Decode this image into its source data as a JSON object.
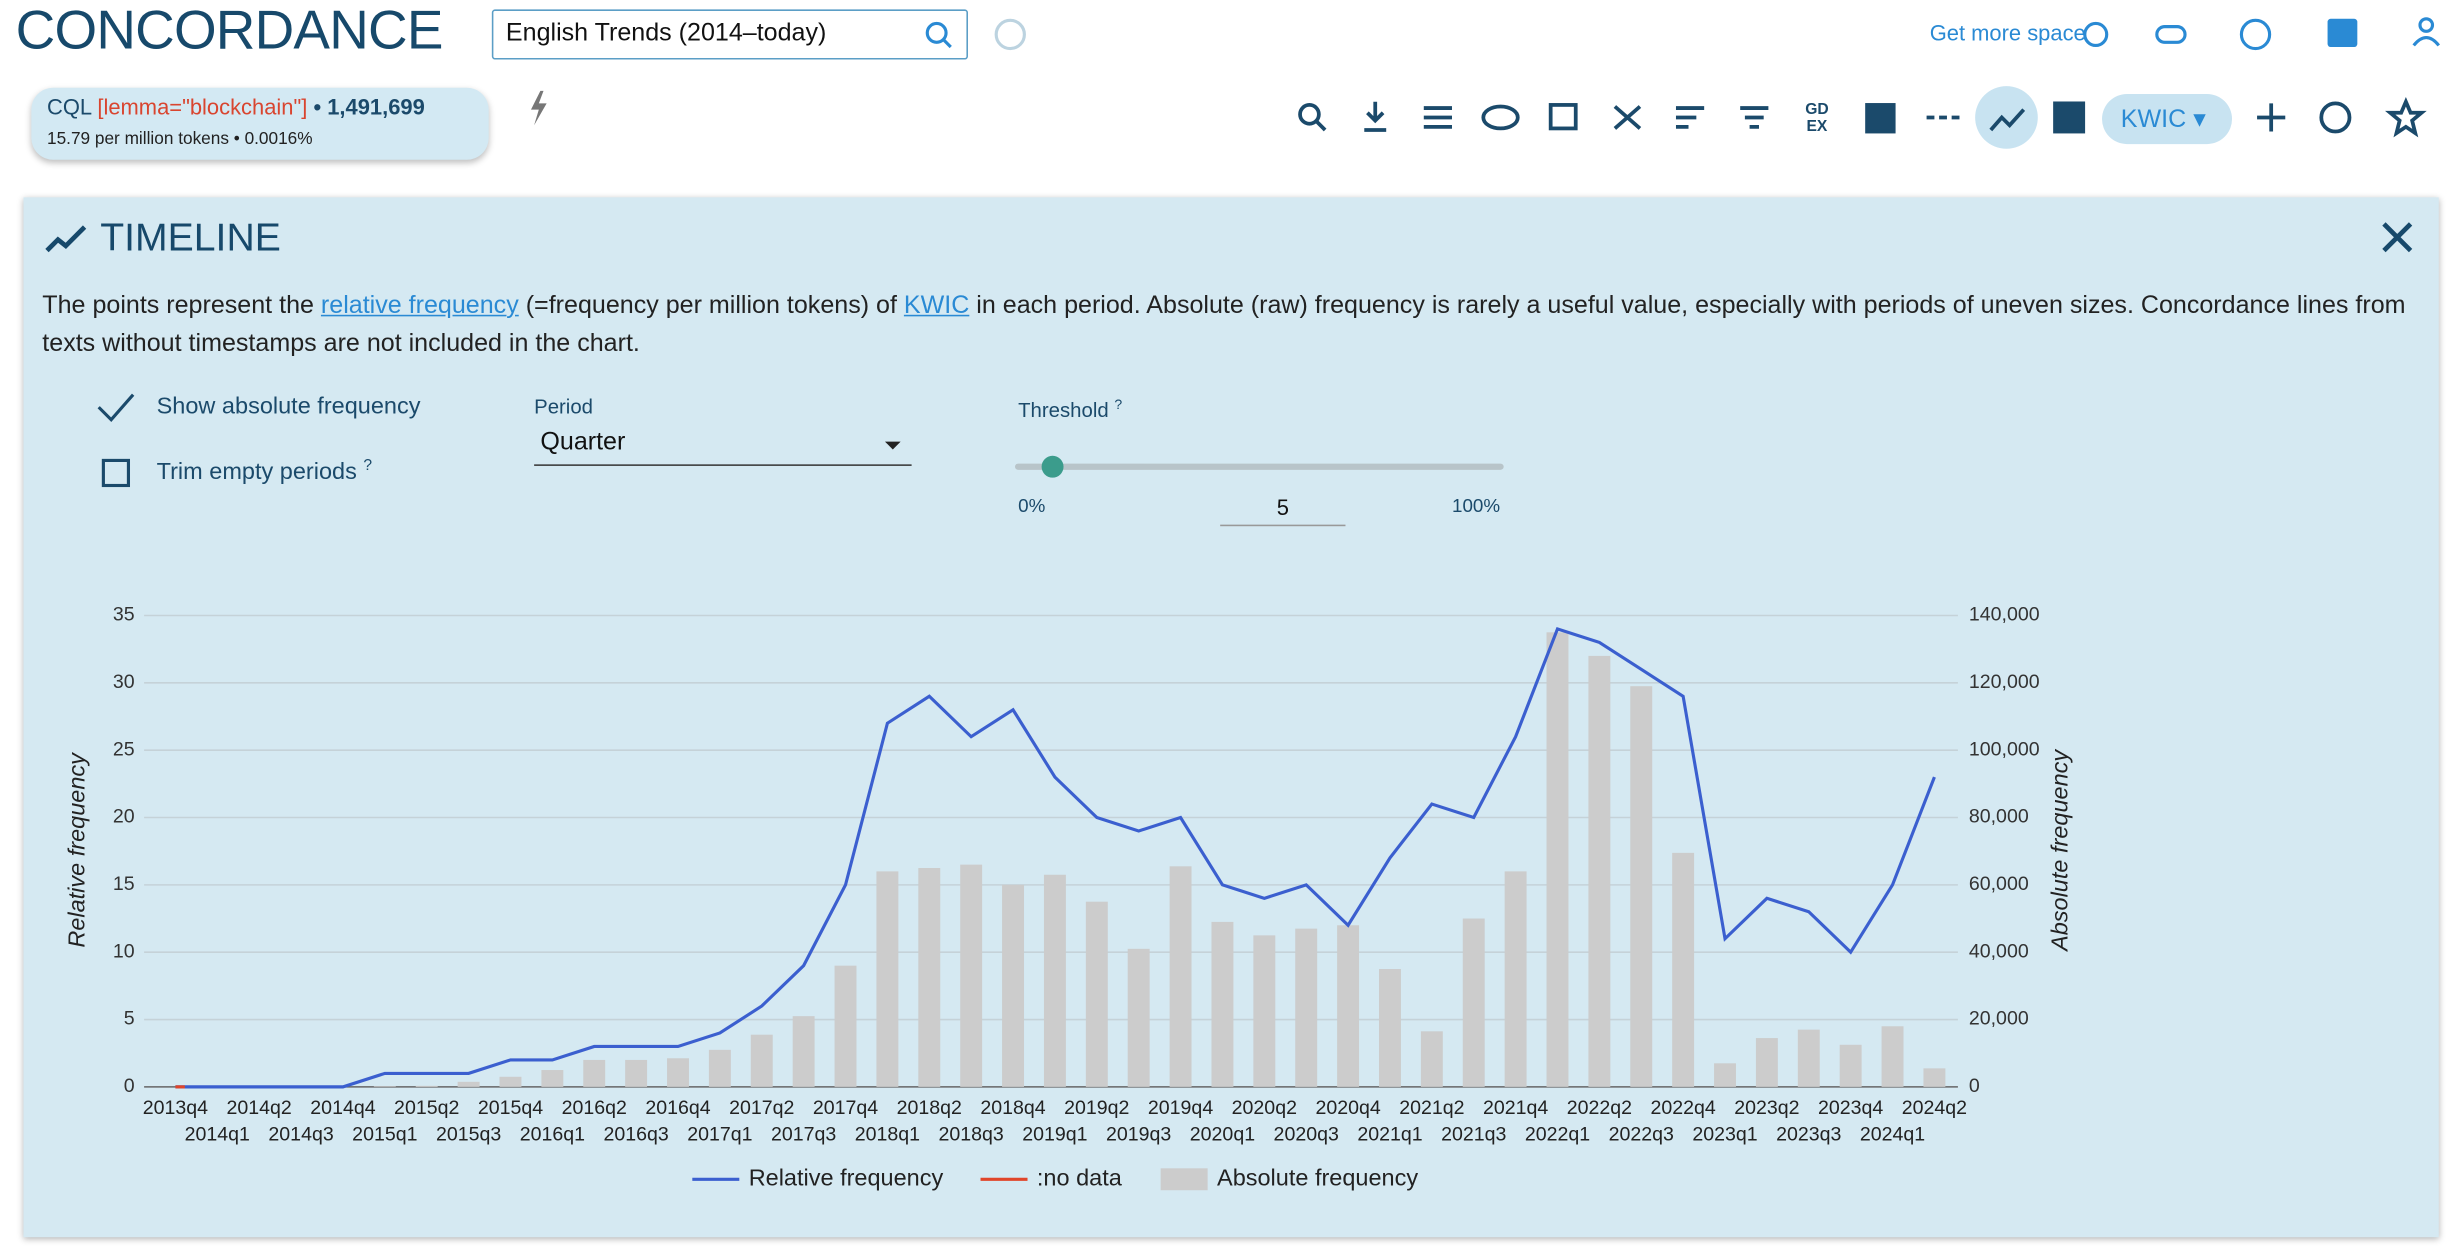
{
  "header": {
    "app_title": "CONCORDANCE",
    "corpus": "English Trends (2014–today)",
    "get_more_space": "Get more space"
  },
  "query": {
    "lang": "CQL",
    "expression": "[lemma=\"blockchain\"]",
    "hits": "• 1,491,699",
    "stats": "15.79 per million tokens • 0.0016%"
  },
  "toolbar": {
    "gdex_top": "GD",
    "gdex_bottom": "EX",
    "view": "KWIC"
  },
  "panel": {
    "title": "TIMELINE",
    "description": [
      "The points represent the ",
      "relative frequency",
      " (=frequency per million tokens) of ",
      "KWIC",
      " in each period. Absolute (raw) frequency is rarely a useful value, especially with periods of uneven sizes. Concordance lines from texts without timestamps are not included in the chart."
    ],
    "show_absolute": "Show absolute frequency",
    "trim_empty": "Trim empty periods",
    "help_mark": "?",
    "period_label": "Period",
    "period_value": "Quarter",
    "threshold_label": "Threshold",
    "threshold_min": "0%",
    "threshold_value": "5",
    "threshold_max": "100%"
  },
  "chart_data": {
    "type": "combo",
    "categories": [
      "2013q4",
      "2014q1",
      "2014q2",
      "2014q3",
      "2014q4",
      "2015q1",
      "2015q2",
      "2015q3",
      "2015q4",
      "2016q1",
      "2016q2",
      "2016q3",
      "2016q4",
      "2017q1",
      "2017q2",
      "2017q3",
      "2017q4",
      "2018q1",
      "2018q2",
      "2018q3",
      "2018q4",
      "2019q1",
      "2019q2",
      "2019q3",
      "2019q4",
      "2020q1",
      "2020q2",
      "2020q3",
      "2020q4",
      "2021q1",
      "2021q2",
      "2021q3",
      "2021q4",
      "2022q1",
      "2022q2",
      "2022q3",
      "2022q4",
      "2023q1",
      "2023q2",
      "2023q3",
      "2023q4",
      "2024q1",
      "2024q2"
    ],
    "series": [
      {
        "name": "Relative frequency",
        "color": "#3b5fcf",
        "values": [
          0,
          0,
          0,
          0,
          0,
          1,
          1,
          1,
          2,
          2,
          3,
          3,
          3,
          4,
          6,
          9,
          15,
          27,
          29,
          26,
          28,
          23,
          20,
          19,
          20,
          15,
          14,
          15,
          12,
          17,
          21,
          20,
          26,
          34,
          33,
          31,
          29,
          11,
          14,
          13,
          10,
          15,
          23
        ]
      },
      {
        "name": ":no data",
        "color": "#e0452a",
        "values": [
          0,
          null,
          null,
          null,
          null,
          null,
          null,
          null,
          null,
          null,
          null,
          null,
          null,
          null,
          null,
          null,
          null,
          null,
          null,
          null,
          null,
          null,
          null,
          null,
          null,
          null,
          null,
          null,
          null,
          null,
          null,
          null,
          null,
          null,
          null,
          null,
          null,
          null,
          null,
          null,
          null,
          null,
          null
        ]
      },
      {
        "name": "Absolute frequency",
        "color": "#cccccc",
        "axis": "y2",
        "values": [
          0,
          0,
          0,
          0,
          0,
          200,
          300,
          1500,
          3000,
          5000,
          8000,
          8000,
          8500,
          11000,
          15500,
          21000,
          36000,
          64000,
          65000,
          66000,
          60000,
          63000,
          55000,
          41000,
          65500,
          49000,
          45000,
          47000,
          48000,
          35000,
          16500,
          50000,
          64000,
          135000,
          128000,
          119000,
          69500,
          7000,
          14500,
          17000,
          12500,
          18000,
          5500
        ]
      }
    ],
    "ylabel": "Relative frequency",
    "y2label": "Absolute frequency",
    "ylim": [
      0,
      35
    ],
    "yticks": [
      0,
      5,
      10,
      15,
      20,
      25,
      30,
      35
    ],
    "y2lim": [
      0,
      140000
    ],
    "y2ticks": [
      0,
      {
        "value": 20000,
        "label": "20,000"
      },
      {
        "value": 40000,
        "label": "40,000"
      },
      {
        "value": 60000,
        "label": "60,000"
      },
      {
        "value": 80000,
        "label": "80,000"
      },
      {
        "value": 100000,
        "label": "100,000"
      },
      {
        "value": 120000,
        "label": "120,000"
      },
      {
        "value": 140000,
        "label": "140,000"
      }
    ],
    "grid": true
  }
}
